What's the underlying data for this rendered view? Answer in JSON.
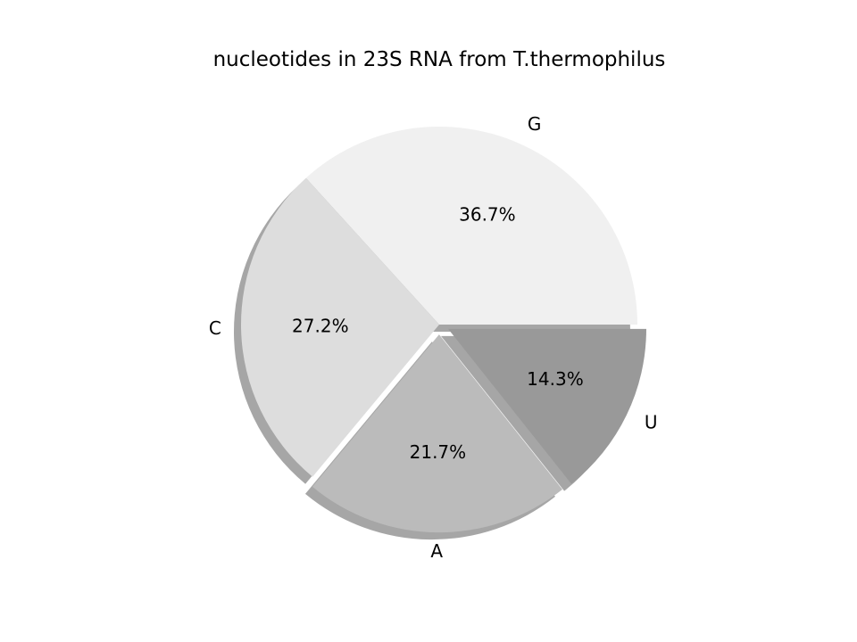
{
  "chart_data": {
    "type": "pie",
    "title": "nucleotides in 23S RNA from T.thermophilus",
    "categories": [
      "G",
      "C",
      "A",
      "U"
    ],
    "values": [
      36.7,
      27.2,
      21.7,
      14.3
    ],
    "percent_labels": [
      "36.7%",
      "27.2%",
      "21.7%",
      "14.3%"
    ],
    "exploded": [
      false,
      false,
      true,
      true
    ],
    "colors": [
      "#f0f0f0",
      "#dddddd",
      "#bbbbbb",
      "#999999"
    ],
    "shadow": true,
    "start_angle_deg": 0,
    "direction": "counterclockwise",
    "legend": "none",
    "grid": false
  }
}
